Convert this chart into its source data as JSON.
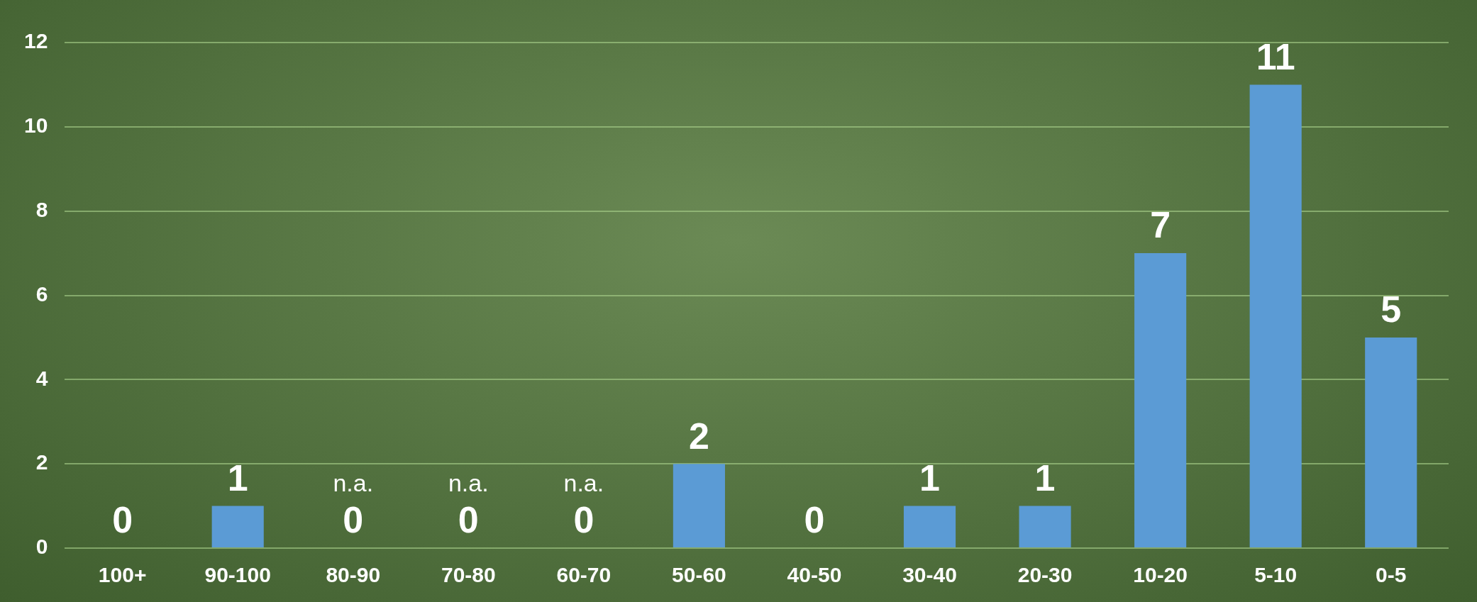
{
  "chart_data": {
    "type": "bar",
    "categories": [
      "100+",
      "90-100",
      "80-90",
      "70-80",
      "60-70",
      "50-60",
      "40-50",
      "30-40",
      "20-30",
      "10-20",
      "5-10",
      "0-5"
    ],
    "values": [
      0,
      1,
      0,
      0,
      0,
      2,
      0,
      1,
      1,
      7,
      11,
      5
    ],
    "color": "#5b9bd5",
    "ylim": [
      0,
      12
    ],
    "yticks": [
      0,
      2,
      4,
      6,
      8,
      10,
      12
    ],
    "grid": "y",
    "legend": false,
    "data_labels": true,
    "annotations": [
      {
        "text": "n.a.",
        "x": "80-90",
        "y": 0
      },
      {
        "text": "n.a.",
        "x": "70-80",
        "y": 0
      },
      {
        "text": "n.a.",
        "x": "60-70",
        "y": 0
      }
    ]
  }
}
